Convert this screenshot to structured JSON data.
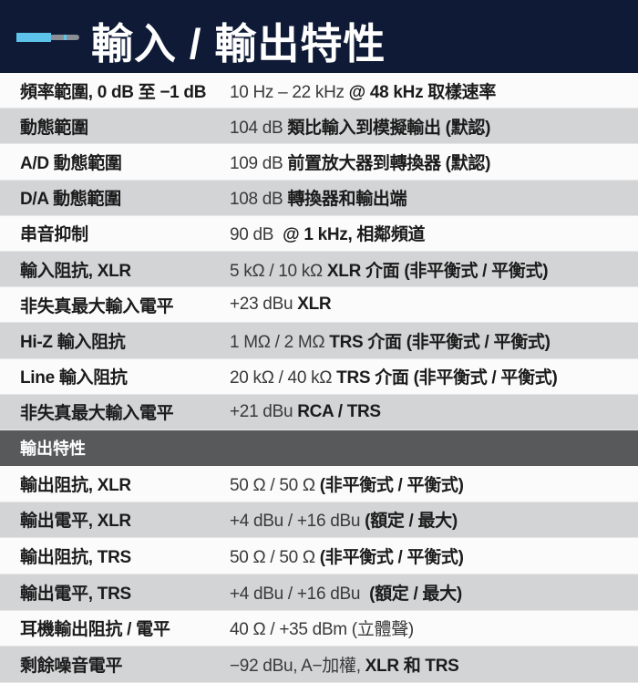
{
  "header": {
    "title": "輸入 / 輸出特性",
    "icon": "audio-jack-icon",
    "bg": "#0f1b36"
  },
  "input_rows": [
    {
      "label": "頻率範圍, 0 dB 至 −1 dB",
      "value": [
        {
          "t": "10 Hz – 22 kHz ",
          "b": false
        },
        {
          "t": "@ 48 kHz 取樣速率",
          "b": true
        }
      ]
    },
    {
      "label": "動態範圍",
      "value": [
        {
          "t": "104 dB ",
          "b": false
        },
        {
          "t": "類比輸入到模擬輸出 (默認)",
          "b": true
        }
      ]
    },
    {
      "label": "A/D 動態範圍",
      "value": [
        {
          "t": "109 dB ",
          "b": false
        },
        {
          "t": "前置放大器到轉換器 (默認)",
          "b": true
        }
      ]
    },
    {
      "label": "D/A 動態範圍",
      "value": [
        {
          "t": "108 dB ",
          "b": false
        },
        {
          "t": "轉換器和輸出端",
          "b": true
        }
      ]
    },
    {
      "label": "串音抑制",
      "value": [
        {
          "t": "90 dB  ",
          "b": false
        },
        {
          "t": "@ 1 kHz, 相鄰頻道",
          "b": true
        }
      ]
    },
    {
      "label": "輸入阻抗, XLR",
      "value": [
        {
          "t": "5 kΩ / 10 kΩ ",
          "b": false
        },
        {
          "t": "XLR 介面 (非平衡式 / 平衡式)",
          "b": true
        }
      ]
    },
    {
      "label": "非失真最大輸入電平",
      "value": [
        {
          "t": "+23 dBu ",
          "b": false
        },
        {
          "t": "XLR",
          "b": true
        }
      ]
    },
    {
      "label": "Hi-Z 輸入阻抗",
      "value": [
        {
          "t": "1 MΩ / 2 MΩ ",
          "b": false
        },
        {
          "t": "TRS 介面 (非平衡式 / 平衡式)",
          "b": true
        }
      ]
    },
    {
      "label": "Line 輸入阻抗",
      "value": [
        {
          "t": "20 kΩ / 40 kΩ ",
          "b": false
        },
        {
          "t": "TRS 介面 (非平衡式 / 平衡式)",
          "b": true
        }
      ]
    },
    {
      "label": "非失真最大輸入電平",
      "value": [
        {
          "t": "+21 dBu ",
          "b": false
        },
        {
          "t": "RCA / TRS",
          "b": true
        }
      ]
    }
  ],
  "output_section": {
    "title": "輸出特性"
  },
  "output_rows": [
    {
      "label": "輸出阻抗, XLR",
      "value": [
        {
          "t": "50 Ω / 50 Ω ",
          "b": false
        },
        {
          "t": "(非平衡式 / 平衡式)",
          "b": true
        }
      ]
    },
    {
      "label": "輸出電平, XLR",
      "value": [
        {
          "t": "+4 dBu / +16 dBu ",
          "b": false
        },
        {
          "t": "(額定 / 最大)",
          "b": true
        }
      ]
    },
    {
      "label": "輸出阻抗, TRS",
      "value": [
        {
          "t": "50 Ω / 50 Ω ",
          "b": false
        },
        {
          "t": "(非平衡式 / 平衡式)",
          "b": true
        }
      ]
    },
    {
      "label": "輸出電平, TRS",
      "value": [
        {
          "t": "+4 dBu / +16 dBu  ",
          "b": false
        },
        {
          "t": "(額定 / 最大)",
          "b": true
        }
      ]
    },
    {
      "label": "耳機輸出阻抗 / 電平",
      "value": [
        {
          "t": "40 Ω / +35 dBm (立體聲)",
          "b": false
        }
      ]
    },
    {
      "label": "剩餘噪音電平",
      "value": [
        {
          "t": "−92 dBu, A−加權, ",
          "b": false
        },
        {
          "t": "XLR 和 TRS",
          "b": true
        }
      ]
    }
  ]
}
